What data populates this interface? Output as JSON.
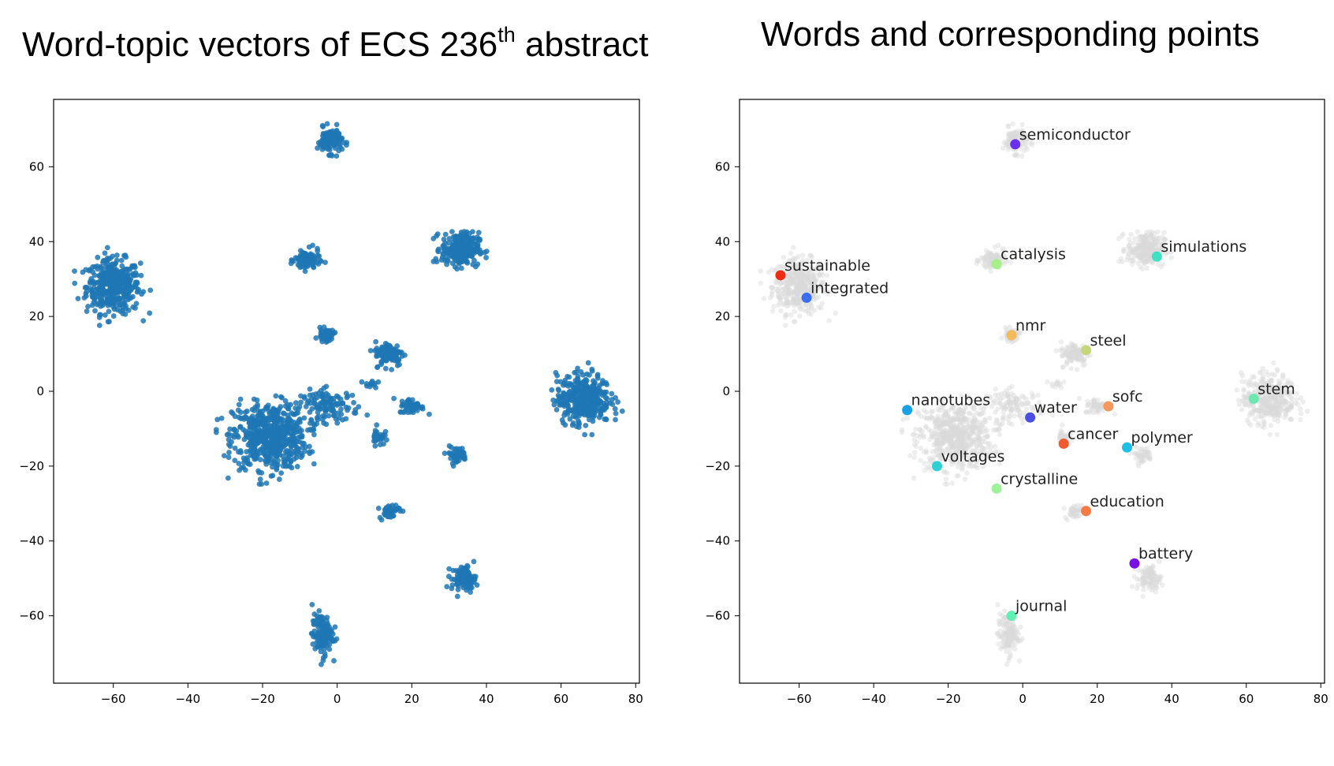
{
  "titles": {
    "left_main": "Word-topic vectors of ECS 236",
    "left_sup": "th",
    "left_tail": " abstract",
    "right": "Words and corresponding points"
  },
  "colors": {
    "cluster_points": "#1f77b4",
    "background_points": "#d9d9d9",
    "axis": "#000000"
  },
  "chart_data": [
    {
      "type": "scatter",
      "title": "",
      "xlabel": "",
      "ylabel": "",
      "xlim": [
        -76,
        81
      ],
      "ylim": [
        -78,
        78
      ],
      "x_ticks": [
        -60,
        -40,
        -20,
        0,
        20,
        40,
        60,
        80
      ],
      "y_ticks": [
        60,
        40,
        20,
        0,
        -20,
        -40,
        -60
      ],
      "x_tick_labels": [
        "−60",
        "−40",
        "−20",
        "0",
        "20",
        "40",
        "60",
        "80"
      ],
      "y_tick_labels": [
        "60",
        "40",
        "20",
        "0",
        "−20",
        "−40",
        "−60"
      ],
      "grid": false,
      "clusters": [
        {
          "center": [
            -60,
            28
          ],
          "spread": [
            6.5,
            6.5
          ],
          "count": 420
        },
        {
          "center": [
            -18,
            -12
          ],
          "spread": [
            9,
            8
          ],
          "count": 620
        },
        {
          "center": [
            -2,
            -4
          ],
          "spread": [
            7,
            4
          ],
          "count": 120
        },
        {
          "center": [
            -2,
            67
          ],
          "spread": [
            3,
            3
          ],
          "count": 110
        },
        {
          "center": [
            -8,
            35
          ],
          "spread": [
            3,
            2.5
          ],
          "count": 100
        },
        {
          "center": [
            -3,
            15
          ],
          "spread": [
            2,
            1.5
          ],
          "count": 45
        },
        {
          "center": [
            33,
            38
          ],
          "spread": [
            4.5,
            4
          ],
          "count": 260
        },
        {
          "center": [
            14,
            10
          ],
          "spread": [
            3.5,
            3
          ],
          "count": 110
        },
        {
          "center": [
            20,
            -4
          ],
          "spread": [
            3,
            1.8
          ],
          "count": 55
        },
        {
          "center": [
            11,
            -12
          ],
          "spread": [
            1.5,
            2.2
          ],
          "count": 35
        },
        {
          "center": [
            32,
            -17
          ],
          "spread": [
            2.5,
            2
          ],
          "count": 45
        },
        {
          "center": [
            14,
            -32
          ],
          "spread": [
            2.5,
            1.8
          ],
          "count": 45
        },
        {
          "center": [
            34,
            -50
          ],
          "spread": [
            3,
            3
          ],
          "count": 95
        },
        {
          "center": [
            -4,
            -65
          ],
          "spread": [
            2.5,
            5
          ],
          "count": 130
        },
        {
          "center": [
            66,
            -2
          ],
          "spread": [
            6.5,
            6
          ],
          "count": 380
        },
        {
          "center": [
            9,
            2
          ],
          "spread": [
            1.5,
            1
          ],
          "count": 12
        }
      ]
    },
    {
      "type": "scatter",
      "title": "",
      "xlabel": "",
      "ylabel": "",
      "xlim": [
        -76,
        81
      ],
      "ylim": [
        -78,
        78
      ],
      "x_ticks": [
        -60,
        -40,
        -20,
        0,
        20,
        40,
        60,
        80
      ],
      "y_ticks": [
        60,
        40,
        20,
        0,
        -20,
        -40,
        -60
      ],
      "x_tick_labels": [
        "−60",
        "−40",
        "−20",
        "0",
        "20",
        "40",
        "60",
        "80"
      ],
      "y_tick_labels": [
        "60",
        "40",
        "20",
        "0",
        "−20",
        "−40",
        "−60"
      ],
      "grid": false,
      "background": "faint grey copy of the left-panel clusters",
      "points": [
        {
          "label": "semiconductor",
          "x": -2,
          "y": 66,
          "color": "#6b2ff0"
        },
        {
          "label": "simulations",
          "x": 36,
          "y": 36,
          "color": "#3fe0c4"
        },
        {
          "label": "catalysis",
          "x": -7,
          "y": 34,
          "color": "#a6ef8a"
        },
        {
          "label": "sustainable",
          "x": -65,
          "y": 31,
          "color": "#ef2b14"
        },
        {
          "label": "integrated",
          "x": -58,
          "y": 25,
          "color": "#3a6ef2"
        },
        {
          "label": "nmr",
          "x": -3,
          "y": 15,
          "color": "#f2bc5e"
        },
        {
          "label": "steel",
          "x": 17,
          "y": 11,
          "color": "#c5d77a"
        },
        {
          "label": "stem",
          "x": 62,
          "y": -2,
          "color": "#6ee8b0"
        },
        {
          "label": "sofc",
          "x": 23,
          "y": -4,
          "color": "#f7985a"
        },
        {
          "label": "nanotubes",
          "x": -31,
          "y": -5,
          "color": "#1aa2e6"
        },
        {
          "label": "water",
          "x": 2,
          "y": -7,
          "color": "#4a4ee6"
        },
        {
          "label": "cancer",
          "x": 11,
          "y": -14,
          "color": "#f15a2e"
        },
        {
          "label": "polymer",
          "x": 28,
          "y": -15,
          "color": "#1ec0e8"
        },
        {
          "label": "voltages",
          "x": -23,
          "y": -20,
          "color": "#2fd0d4"
        },
        {
          "label": "crystalline",
          "x": -7,
          "y": -26,
          "color": "#9ff29a"
        },
        {
          "label": "education",
          "x": 17,
          "y": -32,
          "color": "#f77a45"
        },
        {
          "label": "battery",
          "x": 30,
          "y": -46,
          "color": "#7a10e8"
        },
        {
          "label": "journal",
          "x": -3,
          "y": -60,
          "color": "#62f0b2"
        }
      ]
    }
  ]
}
